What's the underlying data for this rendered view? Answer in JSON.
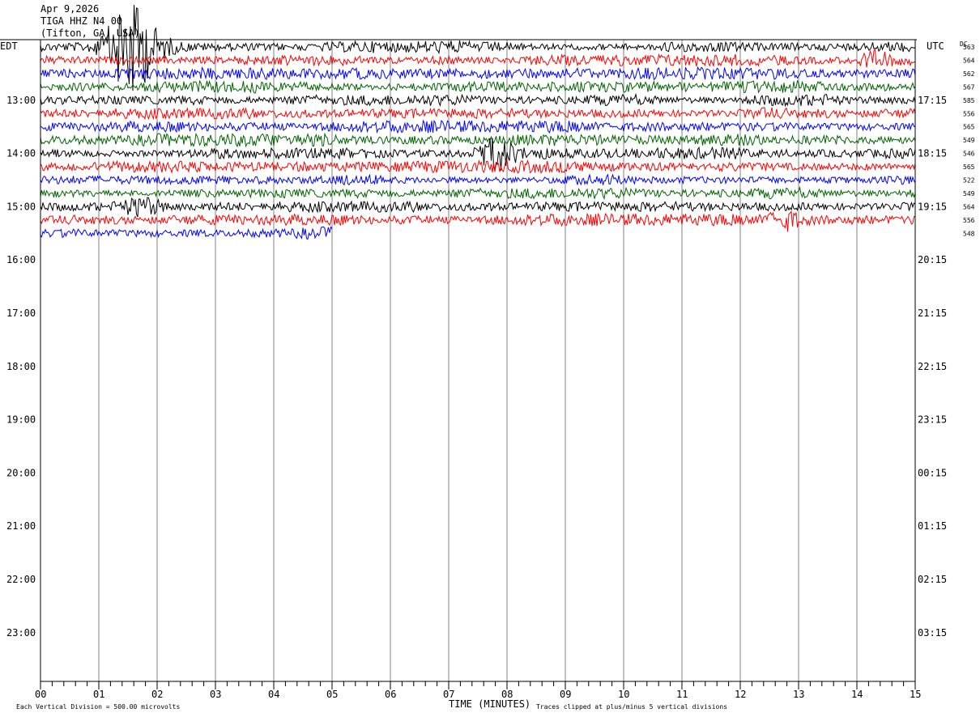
{
  "header": {
    "date": "Apr 9,2026",
    "station": "TIGA HHZ N4 00",
    "location": "(Tifton, GA, USA)"
  },
  "axes": {
    "left_zone": "EDT",
    "right_zone": "UTC",
    "dc_header": "DC",
    "left_hour_labels": [
      "13:00",
      "14:00",
      "15:00",
      "16:00",
      "17:00",
      "18:00",
      "19:00",
      "20:00",
      "21:00",
      "22:00",
      "23:00"
    ],
    "right_hour_labels": [
      "17:15",
      "18:15",
      "19:15",
      "20:15",
      "21:15",
      "22:15",
      "23:15",
      "00:15",
      "01:15",
      "02:15",
      "03:15"
    ],
    "x_tick_labels": [
      "00",
      "01",
      "02",
      "03",
      "04",
      "05",
      "06",
      "07",
      "08",
      "09",
      "10",
      "11",
      "12",
      "13",
      "14",
      "15"
    ],
    "x_title": "TIME (MINUTES)"
  },
  "footer": {
    "scale_note": "Each Vertical Division =  500.00 microvolts",
    "clip_note": "Traces clipped at plus/minus 5 vertical divisions"
  },
  "colors": {
    "trace_cycle": [
      "#000000",
      "#ff0000",
      "#0000ff",
      "#006400"
    ],
    "grid": "#808080",
    "text": "#000000"
  },
  "chart_data": {
    "type": "line",
    "x_unit": "minutes",
    "x_range": [
      0,
      15
    ],
    "rows_per_hour": 4,
    "row_minutes": 15,
    "trace_count": 15,
    "last_trace_minutes": 5,
    "dc_offsets": [
      "563",
      "564",
      "562",
      "567",
      "585",
      "556",
      "565",
      "549",
      "546",
      "565",
      "522",
      "549",
      "564",
      "556",
      "548"
    ],
    "trace_colors": [
      "black",
      "red",
      "blue",
      "green",
      "black",
      "red",
      "blue",
      "green",
      "black",
      "red",
      "blue",
      "green",
      "black",
      "red",
      "blue"
    ]
  }
}
